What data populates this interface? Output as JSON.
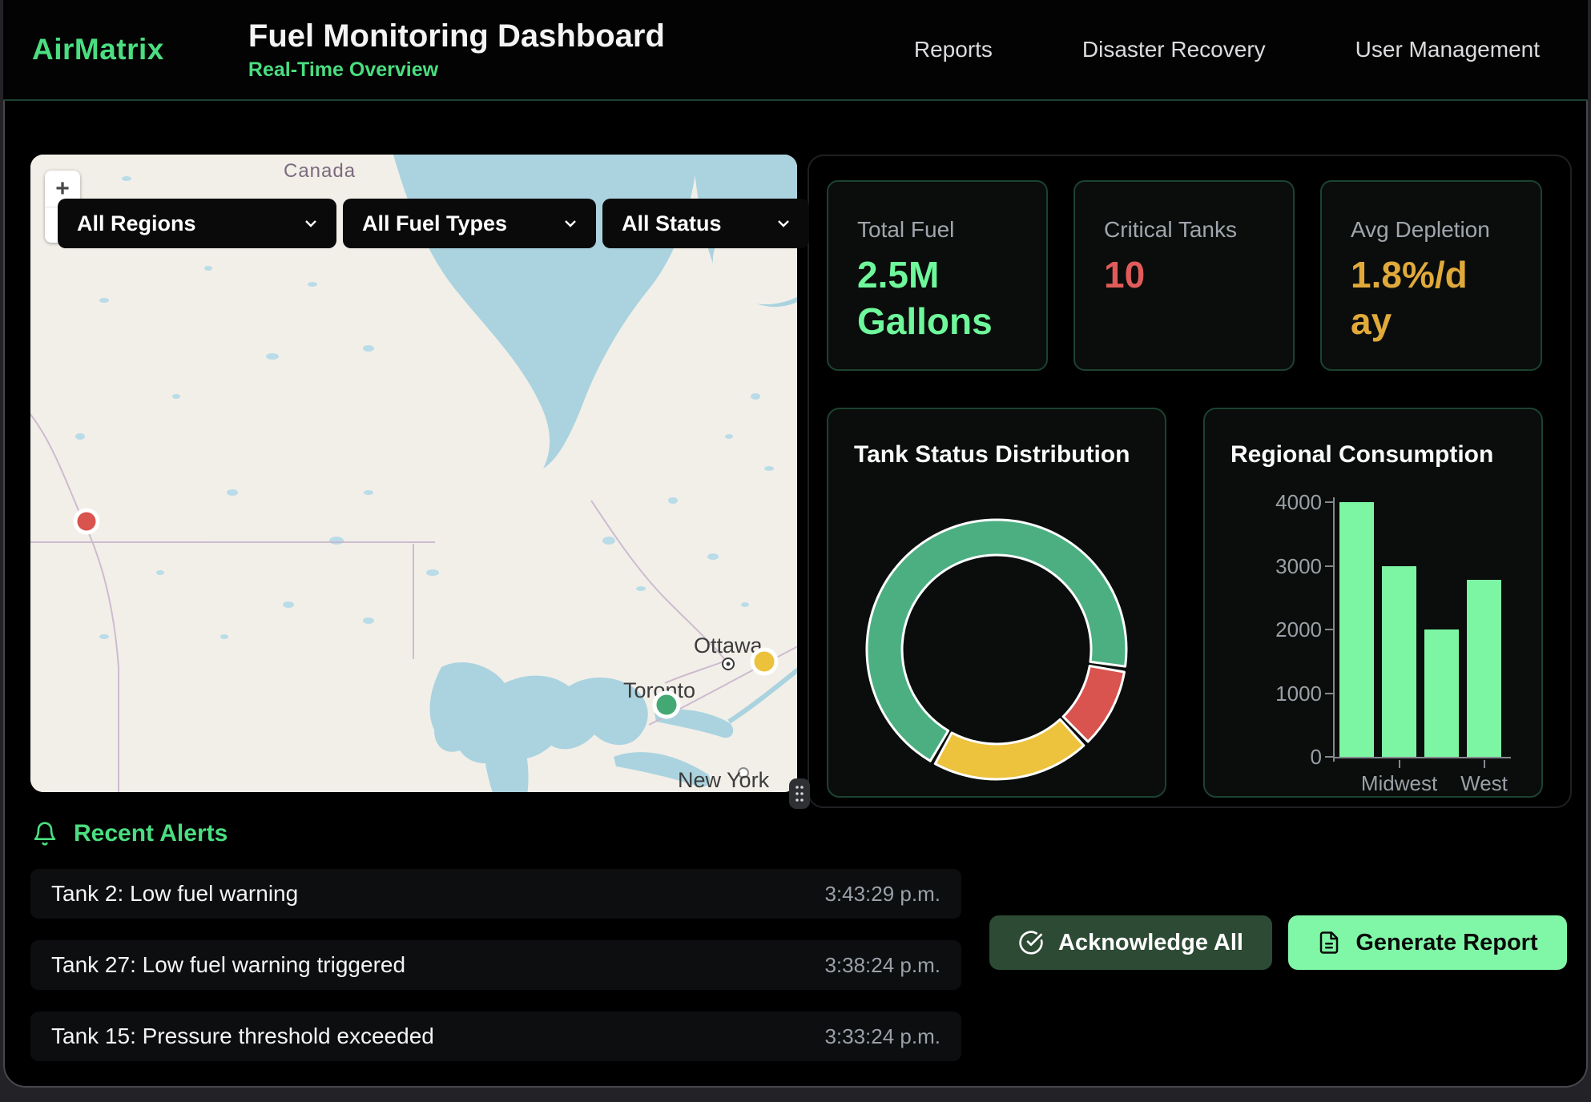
{
  "theme": {
    "accent_green": "#4ade80",
    "bright_green": "#6ef79b",
    "alert_red": "#e05c5a",
    "warn_yellow": "#e0a93a",
    "app_bg": "#000000",
    "card_border_green": "#1c4231"
  },
  "header": {
    "brand": "AirMatrix",
    "title": "Fuel Monitoring Dashboard",
    "subtitle": "Real-Time Overview",
    "nav": [
      {
        "label": "Reports"
      },
      {
        "label": "Disaster Recovery"
      },
      {
        "label": "User Management"
      }
    ]
  },
  "map": {
    "zoom_in_label": "+",
    "filters": [
      {
        "label": "All Regions"
      },
      {
        "label": "All Fuel Types"
      },
      {
        "label": "All Status"
      }
    ],
    "labels": {
      "country": "Canada",
      "city_ottawa": "Ottawa",
      "city_toronto": "Toronto",
      "city_newyork": "New York"
    },
    "markers": [
      {
        "color": "#d9534f"
      },
      {
        "color": "#ecc23d"
      },
      {
        "color": "#44a874"
      }
    ],
    "water_color": "#aad3df",
    "land_color": "#f2efe9"
  },
  "stats": [
    {
      "label": "Total Fuel",
      "value": "2.5M Gallons",
      "color": "#6ef79b"
    },
    {
      "label": "Critical Tanks",
      "value": "10",
      "color": "#e05c5a"
    },
    {
      "label": "Avg Depletion",
      "value": "1.8%/day",
      "color": "#e0a93a"
    }
  ],
  "chart_data": [
    {
      "type": "pie",
      "variant": "donut",
      "title": "Tank Status Distribution",
      "segments": [
        {
          "color": "#d9534f",
          "percent": 10
        },
        {
          "color": "#edc23d",
          "percent": 20
        },
        {
          "color": "#4caf82",
          "percent": 70
        }
      ],
      "start_angle_deg": 100,
      "gap_deg": 2.5,
      "segment_border_color": "#ffffff",
      "legend": "none",
      "labels_shown": false
    },
    {
      "type": "bar",
      "title": "Regional Consumption",
      "values": [
        4000,
        3000,
        2000,
        2780
      ],
      "x_tick_labels": [
        {
          "bar_index": 1,
          "label": "Midwest"
        },
        {
          "bar_index": 3,
          "label": "West"
        }
      ],
      "ylim": [
        0,
        4000
      ],
      "y_ticks": [
        0,
        1000,
        2000,
        3000,
        4000
      ],
      "bar_color": "#7df6a4",
      "axis_color": "#85898e",
      "tick_label_color": "#9aa0a6",
      "grid": false,
      "legend": "none"
    }
  ],
  "alerts": {
    "title": "Recent Alerts",
    "items": [
      {
        "text": "Tank 2: Low fuel warning",
        "time": "3:43:29 p.m."
      },
      {
        "text": "Tank 27: Low fuel warning triggered",
        "time": "3:38:24 p.m."
      },
      {
        "text": "Tank 15: Pressure threshold exceeded",
        "time": "3:33:24 p.m."
      }
    ]
  },
  "actions": {
    "acknowledge_label": "Acknowledge All",
    "generate_label": "Generate Report",
    "acknowledge_bg": "#2d4a34",
    "generate_bg": "#80f7a6"
  }
}
